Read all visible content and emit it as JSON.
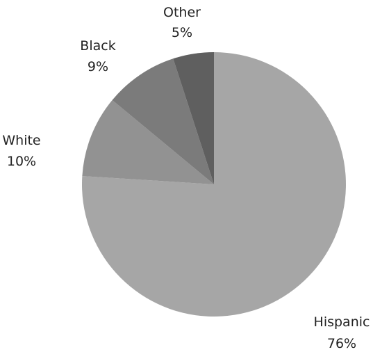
{
  "chart_data": {
    "type": "pie",
    "start_angle_deg": 0,
    "direction": "clockwise",
    "slices": [
      {
        "name": "Hispanic",
        "value": 76,
        "label": "76%",
        "color": "#a6a6a6"
      },
      {
        "name": "White",
        "value": 10,
        "label": "10%",
        "color": "#929292"
      },
      {
        "name": "Black",
        "value": 9,
        "label": "9%",
        "color": "#7b7b7b"
      },
      {
        "name": "Other",
        "value": 5,
        "label": "5%",
        "color": "#5f5f5f"
      }
    ],
    "legend": "none"
  }
}
